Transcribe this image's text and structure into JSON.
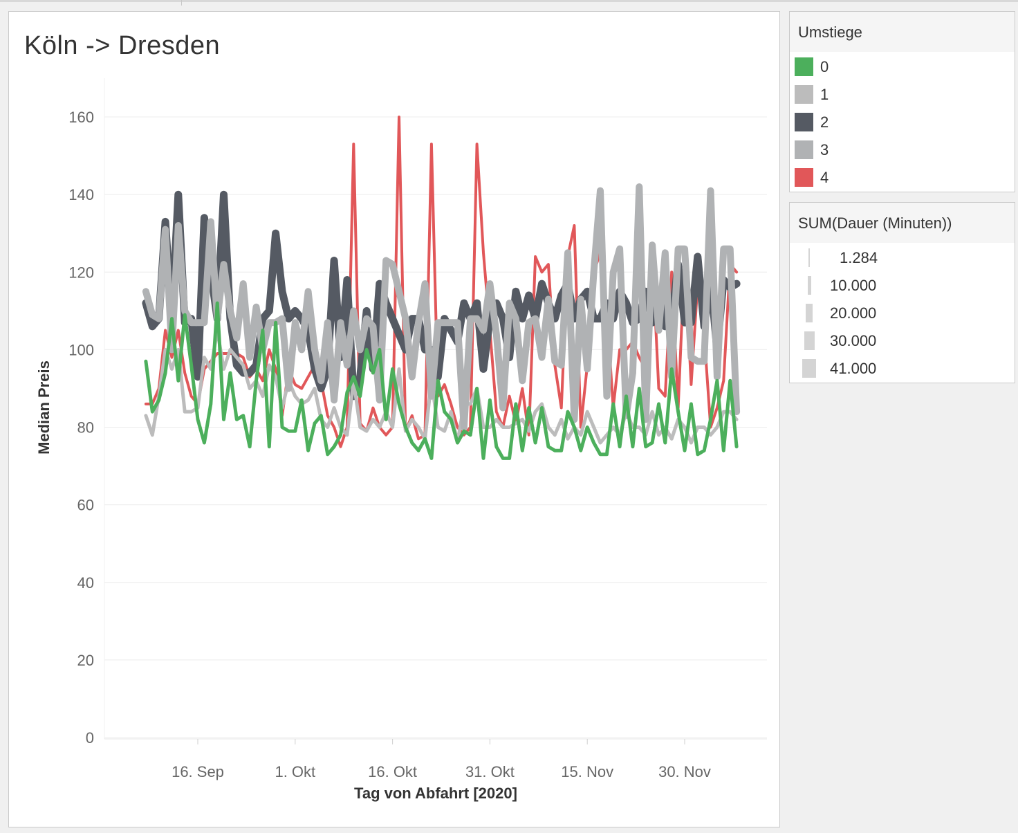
{
  "chart_data": {
    "type": "line",
    "title": "Köln -> Dresden",
    "xlabel": "Tag von Abfahrt [2020]",
    "ylabel": "Median Preis",
    "ylim": [
      0,
      170
    ],
    "yticks": [
      "0",
      "20",
      "40",
      "60",
      "80",
      "100",
      "120",
      "140",
      "160"
    ],
    "xticks": [
      {
        "date": "2020-09-16",
        "label": "16. Sep"
      },
      {
        "date": "2020-10-01",
        "label": "1. Okt"
      },
      {
        "date": "2020-10-16",
        "label": "16. Okt"
      },
      {
        "date": "2020-10-31",
        "label": "31. Okt"
      },
      {
        "date": "2020-11-15",
        "label": "15. Nov"
      },
      {
        "date": "2020-11-30",
        "label": "30. Nov"
      }
    ],
    "grid": true,
    "series": [
      {
        "name": "4",
        "color": "#e15759",
        "width": 4,
        "x": [
          "2020-09-08",
          "2020-09-09",
          "2020-09-10",
          "2020-09-11",
          "2020-09-12",
          "2020-09-13",
          "2020-09-14",
          "2020-09-15",
          "2020-09-16",
          "2020-09-17",
          "2020-09-18",
          "2020-09-19",
          "2020-09-20",
          "2020-09-21",
          "2020-09-22",
          "2020-09-23",
          "2020-09-24",
          "2020-09-25",
          "2020-09-26",
          "2020-09-27",
          "2020-09-28",
          "2020-09-29",
          "2020-09-30",
          "2020-10-01",
          "2020-10-02",
          "2020-10-03",
          "2020-10-04",
          "2020-10-05",
          "2020-10-06",
          "2020-10-07",
          "2020-10-08",
          "2020-10-09",
          "2020-10-10",
          "2020-10-11",
          "2020-10-12",
          "2020-10-13",
          "2020-10-14",
          "2020-10-15",
          "2020-10-16",
          "2020-10-17",
          "2020-10-18",
          "2020-10-19",
          "2020-10-20",
          "2020-10-21",
          "2020-10-22",
          "2020-10-23",
          "2020-10-24",
          "2020-10-25",
          "2020-10-26",
          "2020-10-27",
          "2020-10-28",
          "2020-10-29",
          "2020-10-30",
          "2020-10-31",
          "2020-11-01",
          "2020-11-02",
          "2020-11-03",
          "2020-11-04",
          "2020-11-05",
          "2020-11-06",
          "2020-11-07",
          "2020-11-08",
          "2020-11-09",
          "2020-11-10",
          "2020-11-11",
          "2020-11-12",
          "2020-11-13",
          "2020-11-14",
          "2020-11-15",
          "2020-11-16",
          "2020-11-17",
          "2020-11-18",
          "2020-11-19",
          "2020-11-20",
          "2020-11-21",
          "2020-11-22",
          "2020-11-23",
          "2020-11-24",
          "2020-11-25",
          "2020-11-26",
          "2020-11-27",
          "2020-11-28",
          "2020-11-29",
          "2020-11-30",
          "2020-12-01",
          "2020-12-02",
          "2020-12-03",
          "2020-12-04",
          "2020-12-05",
          "2020-12-06",
          "2020-12-07",
          "2020-12-08"
        ],
        "y": [
          86,
          86,
          90,
          105,
          98,
          105,
          94,
          88,
          86,
          95,
          97,
          99,
          99,
          99,
          99,
          98,
          93,
          95,
          92,
          100,
          95,
          83,
          95,
          91,
          90,
          93,
          96,
          92,
          83,
          80,
          75,
          80,
          153,
          81,
          79,
          85,
          80,
          78,
          80,
          160,
          79,
          83,
          77,
          78,
          153,
          88,
          91,
          86,
          80,
          78,
          80,
          153,
          125,
          105,
          84,
          80,
          88,
          81,
          90,
          78,
          124,
          120,
          122,
          96,
          85,
          124,
          132,
          80,
          96,
          120,
          125,
          110,
          85,
          100,
          100,
          102,
          98,
          95,
          125,
          90,
          88,
          120,
          85,
          124,
          91,
          117,
          104,
          80,
          85,
          92,
          122,
          120
        ]
      },
      {
        "name": "2",
        "color": "#555a63",
        "width": 11,
        "x": [
          "2020-09-08",
          "2020-09-09",
          "2020-09-10",
          "2020-09-11",
          "2020-09-12",
          "2020-09-13",
          "2020-09-14",
          "2020-09-15",
          "2020-09-16",
          "2020-09-17",
          "2020-09-18",
          "2020-09-19",
          "2020-09-20",
          "2020-09-21",
          "2020-09-22",
          "2020-09-23",
          "2020-09-24",
          "2020-09-25",
          "2020-09-26",
          "2020-09-27",
          "2020-09-28",
          "2020-09-29",
          "2020-09-30",
          "2020-10-01",
          "2020-10-02",
          "2020-10-03",
          "2020-10-04",
          "2020-10-05",
          "2020-10-06",
          "2020-10-07",
          "2020-10-08",
          "2020-10-09",
          "2020-10-10",
          "2020-10-11",
          "2020-10-12",
          "2020-10-13",
          "2020-10-14",
          "2020-10-15",
          "2020-10-16",
          "2020-10-17",
          "2020-10-18",
          "2020-10-19",
          "2020-10-20",
          "2020-10-21",
          "2020-10-22",
          "2020-10-23",
          "2020-10-24",
          "2020-10-25",
          "2020-10-26",
          "2020-10-27",
          "2020-10-28",
          "2020-10-29",
          "2020-10-30",
          "2020-10-31",
          "2020-11-01",
          "2020-11-02",
          "2020-11-03",
          "2020-11-04",
          "2020-11-05",
          "2020-11-06",
          "2020-11-07",
          "2020-11-08",
          "2020-11-09",
          "2020-11-10",
          "2020-11-11",
          "2020-11-12",
          "2020-11-13",
          "2020-11-14",
          "2020-11-15",
          "2020-11-16",
          "2020-11-17",
          "2020-11-18",
          "2020-11-19",
          "2020-11-20",
          "2020-11-21",
          "2020-11-22",
          "2020-11-23",
          "2020-11-24",
          "2020-11-25",
          "2020-11-26",
          "2020-11-27",
          "2020-11-28",
          "2020-11-29",
          "2020-11-30",
          "2020-12-01",
          "2020-12-02",
          "2020-12-03",
          "2020-12-04",
          "2020-12-05",
          "2020-12-06",
          "2020-12-07",
          "2020-12-08"
        ],
        "y": [
          112,
          106,
          108,
          133,
          108,
          140,
          107,
          108,
          93,
          134,
          120,
          108,
          140,
          108,
          96,
          94,
          94,
          96,
          108,
          110,
          130,
          115,
          108,
          110,
          108,
          105,
          95,
          90,
          95,
          123,
          98,
          118,
          88,
          93,
          110,
          95,
          117,
          112,
          108,
          104,
          100,
          108,
          108,
          100,
          100,
          93,
          108,
          105,
          102,
          112,
          108,
          112,
          95,
          108,
          112,
          108,
          98,
          115,
          108,
          114,
          108,
          117,
          112,
          108,
          114,
          117,
          108,
          113,
          115,
          108,
          108,
          112,
          108,
          115,
          112,
          107,
          108,
          115,
          107,
          115,
          106,
          108,
          122,
          107,
          107,
          124,
          106,
          118,
          100,
          118,
          116,
          117
        ]
      },
      {
        "name": "1",
        "color": "#bcbcbc",
        "width": 5,
        "x": [
          "2020-09-08",
          "2020-09-09",
          "2020-09-10",
          "2020-09-11",
          "2020-09-12",
          "2020-09-13",
          "2020-09-14",
          "2020-09-15",
          "2020-09-16",
          "2020-09-17",
          "2020-09-18",
          "2020-09-19",
          "2020-09-20",
          "2020-09-21",
          "2020-09-22",
          "2020-09-23",
          "2020-09-24",
          "2020-09-25",
          "2020-09-26",
          "2020-09-27",
          "2020-09-28",
          "2020-09-29",
          "2020-09-30",
          "2020-10-01",
          "2020-10-02",
          "2020-10-03",
          "2020-10-04",
          "2020-10-05",
          "2020-10-06",
          "2020-10-07",
          "2020-10-08",
          "2020-10-09",
          "2020-10-10",
          "2020-10-11",
          "2020-10-12",
          "2020-10-13",
          "2020-10-14",
          "2020-10-15",
          "2020-10-16",
          "2020-10-17",
          "2020-10-18",
          "2020-10-19",
          "2020-10-20",
          "2020-10-21",
          "2020-10-22",
          "2020-10-23",
          "2020-10-24",
          "2020-10-25",
          "2020-10-26",
          "2020-10-27",
          "2020-10-28",
          "2020-10-29",
          "2020-10-30",
          "2020-10-31",
          "2020-11-01",
          "2020-11-02",
          "2020-11-03",
          "2020-11-04",
          "2020-11-05",
          "2020-11-06",
          "2020-11-07",
          "2020-11-08",
          "2020-11-09",
          "2020-11-10",
          "2020-11-11",
          "2020-11-12",
          "2020-11-13",
          "2020-11-14",
          "2020-11-15",
          "2020-11-16",
          "2020-11-17",
          "2020-11-18",
          "2020-11-19",
          "2020-11-20",
          "2020-11-21",
          "2020-11-22",
          "2020-11-23",
          "2020-11-24",
          "2020-11-25",
          "2020-11-26",
          "2020-11-27",
          "2020-11-28",
          "2020-11-29",
          "2020-11-30",
          "2020-12-01",
          "2020-12-02",
          "2020-12-03",
          "2020-12-04",
          "2020-12-05",
          "2020-12-06",
          "2020-12-07",
          "2020-12-08"
        ],
        "y": [
          83,
          78,
          88,
          100,
          95,
          100,
          84,
          84,
          85,
          98,
          95,
          105,
          95,
          100,
          98,
          96,
          90,
          92,
          88,
          96,
          93,
          85,
          92,
          88,
          86,
          87,
          90,
          82,
          80,
          85,
          80,
          78,
          92,
          80,
          79,
          82,
          80,
          84,
          80,
          95,
          79,
          82,
          80,
          77,
          92,
          80,
          79,
          84,
          76,
          86,
          86,
          90,
          80,
          80,
          82,
          80,
          80,
          81,
          82,
          79,
          84,
          86,
          80,
          78,
          82,
          77,
          80,
          78,
          84,
          80,
          76,
          78,
          80,
          78,
          84,
          80,
          80,
          78,
          84,
          78,
          80,
          77,
          82,
          80,
          76,
          80,
          80,
          78,
          80,
          84,
          84,
          82
        ]
      },
      {
        "name": "3",
        "color": "#b0b2b4",
        "width": 10,
        "x": [
          "2020-09-08",
          "2020-09-09",
          "2020-09-10",
          "2020-09-11",
          "2020-09-12",
          "2020-09-13",
          "2020-09-14",
          "2020-09-15",
          "2020-09-16",
          "2020-09-17",
          "2020-09-18",
          "2020-09-19",
          "2020-09-20",
          "2020-09-21",
          "2020-09-22",
          "2020-09-23",
          "2020-09-24",
          "2020-09-25",
          "2020-09-26",
          "2020-09-27",
          "2020-09-28",
          "2020-09-29",
          "2020-09-30",
          "2020-10-01",
          "2020-10-02",
          "2020-10-03",
          "2020-10-04",
          "2020-10-05",
          "2020-10-06",
          "2020-10-07",
          "2020-10-08",
          "2020-10-09",
          "2020-10-10",
          "2020-10-11",
          "2020-10-12",
          "2020-10-13",
          "2020-10-14",
          "2020-10-15",
          "2020-10-16",
          "2020-10-17",
          "2020-10-18",
          "2020-10-19",
          "2020-10-20",
          "2020-10-21",
          "2020-10-22",
          "2020-10-23",
          "2020-10-24",
          "2020-10-25",
          "2020-10-26",
          "2020-10-27",
          "2020-10-28",
          "2020-10-29",
          "2020-10-30",
          "2020-10-31",
          "2020-11-01",
          "2020-11-02",
          "2020-11-03",
          "2020-11-04",
          "2020-11-05",
          "2020-11-06",
          "2020-11-07",
          "2020-11-08",
          "2020-11-09",
          "2020-11-10",
          "2020-11-11",
          "2020-11-12",
          "2020-11-13",
          "2020-11-14",
          "2020-11-15",
          "2020-11-16",
          "2020-11-17",
          "2020-11-18",
          "2020-11-19",
          "2020-11-20",
          "2020-11-21",
          "2020-11-22",
          "2020-11-23",
          "2020-11-24",
          "2020-11-25",
          "2020-11-26",
          "2020-11-27",
          "2020-11-28",
          "2020-11-29",
          "2020-11-30",
          "2020-12-01",
          "2020-12-02",
          "2020-12-03",
          "2020-12-04",
          "2020-12-05",
          "2020-12-06",
          "2020-12-07",
          "2020-12-08"
        ],
        "y": [
          115,
          109,
          108,
          131,
          100,
          132,
          110,
          107,
          107,
          107,
          133,
          108,
          122,
          110,
          103,
          117,
          98,
          111,
          100,
          107,
          107,
          108,
          90,
          107,
          100,
          115,
          100,
          92,
          107,
          87,
          107,
          96,
          110,
          100,
          108,
          106,
          87,
          123,
          122,
          115,
          108,
          93,
          107,
          117,
          88,
          107,
          107,
          107,
          107,
          80,
          108,
          108,
          105,
          117,
          104,
          85,
          112,
          108,
          92,
          107,
          108,
          98,
          113,
          97,
          96,
          125,
          82,
          113,
          95,
          120,
          141,
          88,
          120,
          126,
          83,
          94,
          142,
          82,
          127,
          105,
          125,
          93,
          126,
          126,
          98,
          97,
          97,
          141,
          93,
          126,
          126,
          84
        ]
      },
      {
        "name": "0",
        "color": "#4caf5c",
        "width": 5,
        "x": [
          "2020-09-08",
          "2020-09-09",
          "2020-09-10",
          "2020-09-11",
          "2020-09-12",
          "2020-09-13",
          "2020-09-14",
          "2020-09-15",
          "2020-09-16",
          "2020-09-17",
          "2020-09-18",
          "2020-09-19",
          "2020-09-20",
          "2020-09-21",
          "2020-09-22",
          "2020-09-23",
          "2020-09-24",
          "2020-09-25",
          "2020-09-26",
          "2020-09-27",
          "2020-09-28",
          "2020-09-29",
          "2020-09-30",
          "2020-10-01",
          "2020-10-02",
          "2020-10-03",
          "2020-10-04",
          "2020-10-05",
          "2020-10-06",
          "2020-10-07",
          "2020-10-08",
          "2020-10-09",
          "2020-10-10",
          "2020-10-11",
          "2020-10-12",
          "2020-10-13",
          "2020-10-14",
          "2020-10-15",
          "2020-10-16",
          "2020-10-17",
          "2020-10-18",
          "2020-10-19",
          "2020-10-20",
          "2020-10-21",
          "2020-10-22",
          "2020-10-23",
          "2020-10-24",
          "2020-10-25",
          "2020-10-26",
          "2020-10-27",
          "2020-10-28",
          "2020-10-29",
          "2020-10-30",
          "2020-10-31",
          "2020-11-01",
          "2020-11-02",
          "2020-11-03",
          "2020-11-04",
          "2020-11-05",
          "2020-11-06",
          "2020-11-07",
          "2020-11-08",
          "2020-11-09",
          "2020-11-10",
          "2020-11-11",
          "2020-11-12",
          "2020-11-13",
          "2020-11-14",
          "2020-11-15",
          "2020-11-16",
          "2020-11-17",
          "2020-11-18",
          "2020-11-19",
          "2020-11-20",
          "2020-11-21",
          "2020-11-22",
          "2020-11-23",
          "2020-11-24",
          "2020-11-25",
          "2020-11-26",
          "2020-11-27",
          "2020-11-28",
          "2020-11-29",
          "2020-11-30",
          "2020-12-01",
          "2020-12-02",
          "2020-12-03",
          "2020-12-04",
          "2020-12-05",
          "2020-12-06",
          "2020-12-07",
          "2020-12-08"
        ],
        "y": [
          97,
          84,
          87,
          94,
          108,
          92,
          109,
          96,
          82,
          76,
          86,
          112,
          82,
          94,
          82,
          83,
          75,
          92,
          105,
          75,
          107,
          80,
          79,
          79,
          87,
          74,
          81,
          83,
          73,
          75,
          78,
          89,
          93,
          88,
          100,
          94,
          100,
          82,
          95,
          86,
          80,
          76,
          74,
          77,
          72,
          92,
          84,
          82,
          76,
          79,
          78,
          90,
          72,
          87,
          75,
          72,
          72,
          86,
          74,
          85,
          76,
          85,
          75,
          74,
          74,
          84,
          80,
          74,
          80,
          76,
          73,
          73,
          86,
          75,
          88,
          75,
          90,
          75,
          76,
          86,
          76,
          95,
          84,
          74,
          86,
          73,
          74,
          82,
          92,
          74,
          92,
          75
        ]
      }
    ]
  },
  "legend_color": {
    "title": "Umstiege",
    "items": [
      {
        "label": "0",
        "color": "#4caf5c"
      },
      {
        "label": "1",
        "color": "#bcbcbc"
      },
      {
        "label": "2",
        "color": "#555a63"
      },
      {
        "label": "3",
        "color": "#b0b2b4"
      },
      {
        "label": "4",
        "color": "#e15759"
      }
    ]
  },
  "legend_size": {
    "title": "SUM(Dauer (Minuten))",
    "items": [
      {
        "label": "1.284",
        "value": 1284
      },
      {
        "label": "10.000",
        "value": 10000
      },
      {
        "label": "20.000",
        "value": 20000
      },
      {
        "label": "30.000",
        "value": 30000
      },
      {
        "label": "41.000",
        "value": 41000
      }
    ]
  }
}
